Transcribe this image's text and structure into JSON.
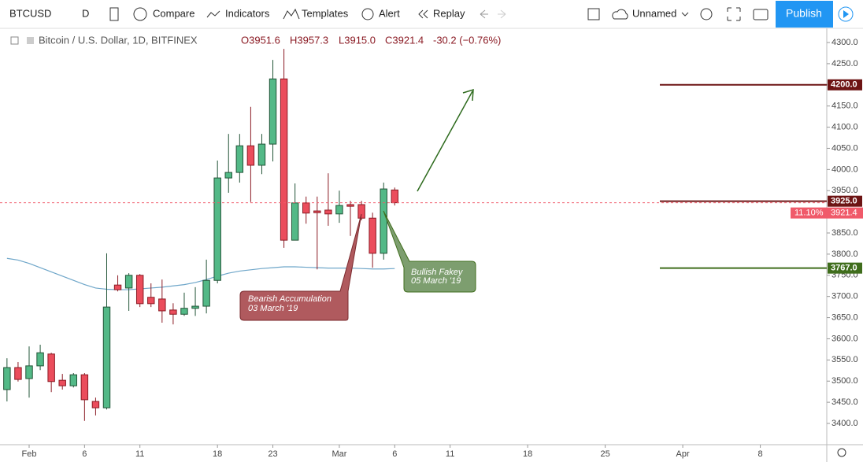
{
  "toolbar": {
    "symbol": "BTCUSD",
    "interval": "D",
    "compare": "Compare",
    "indicators": "Indicators",
    "templates": "Templates",
    "alert": "Alert",
    "replay": "Replay",
    "layout": "Unnamed",
    "publish": "Publish"
  },
  "chart_data": {
    "type": "candlestick",
    "title": "Bitcoin / U.S. Dollar, 1D, BITFINEX",
    "ohlc_text": [
      "O3951.6",
      "H3957.3",
      "L3915.0",
      "C3921.4",
      "-30.2 (−0.76%)"
    ],
    "x": [
      -2,
      -1,
      0,
      1,
      2,
      3,
      4,
      5,
      6,
      7,
      8,
      9,
      10,
      11,
      12,
      13,
      14,
      15,
      16,
      17,
      18,
      19,
      20,
      21,
      22,
      23,
      24,
      25,
      26,
      27,
      28,
      29,
      30,
      31,
      32,
      33
    ],
    "open": [
      3480,
      3532,
      3506,
      3536,
      3564,
      3502,
      3489,
      3515,
      3452,
      3437,
      3727,
      3720,
      3750,
      3698,
      3694,
      3668,
      3658,
      3672,
      3677,
      3738,
      3980,
      3993,
      4056,
      4010,
      4060,
      4214,
      3833,
      3921,
      3902,
      3904,
      3895,
      3917,
      3917,
      3885,
      3802,
      3951.6
    ],
    "high": [
      3554,
      3545,
      3582,
      3586,
      3567,
      3517,
      3519,
      3519,
      3461,
      3802,
      3750,
      3755,
      3753,
      3731,
      3740,
      3684,
      3709,
      3722,
      3787,
      4021,
      4084,
      4084,
      4148,
      4084,
      4259,
      4285,
      3967,
      3936,
      3936,
      3991,
      3950,
      3926,
      3926,
      3898,
      3969,
      3957.3
    ],
    "low": [
      3452,
      3499,
      3461,
      3526,
      3474,
      3480,
      3485,
      3406,
      3419,
      3433,
      3712,
      3666,
      3675,
      3675,
      3638,
      3634,
      3654,
      3654,
      3660,
      3731,
      3945,
      3969,
      3923,
      3989,
      4019,
      3815,
      3833,
      3872,
      3764,
      3867,
      3874,
      3843,
      3880,
      3768,
      3787,
      3915.0
    ],
    "close": [
      3532,
      3504,
      3536,
      3567,
      3499,
      3489,
      3515,
      3456,
      3437,
      3675,
      3716,
      3750,
      3683,
      3683,
      3666,
      3658,
      3672,
      3677,
      3738,
      3980,
      3993,
      4056,
      4010,
      4060,
      4214,
      3833,
      3921,
      3897,
      3898,
      3895,
      3915,
      3913,
      3885,
      3802,
      3954,
      3921.4
    ],
    "ma_values": [
      3790,
      3786,
      3778,
      3768,
      3758,
      3748,
      3738,
      3728,
      3720,
      3717,
      3716,
      3716,
      3718,
      3720,
      3722,
      3725,
      3728,
      3733,
      3740,
      3748,
      3755,
      3760,
      3763,
      3766,
      3768,
      3770,
      3770,
      3769,
      3768,
      3767,
      3767,
      3767,
      3766,
      3765,
      3765,
      3766
    ],
    "up_color": "#53b987",
    "down_color": "#eb4d5c",
    "ma_color": "#6ea6c9",
    "xlim": [
      -2.63,
      72
    ],
    "xticks": [
      {
        "value": 0,
        "label": "Feb"
      },
      {
        "value": 5,
        "label": "6"
      },
      {
        "value": 10,
        "label": "11"
      },
      {
        "value": 17,
        "label": "18"
      },
      {
        "value": 22,
        "label": "23"
      },
      {
        "value": 28,
        "label": "Mar"
      },
      {
        "value": 33,
        "label": "6"
      },
      {
        "value": 38,
        "label": "11"
      },
      {
        "value": 45,
        "label": "18"
      },
      {
        "value": 52,
        "label": "25"
      },
      {
        "value": 59,
        "label": "Apr"
      },
      {
        "value": 66,
        "label": "8"
      }
    ],
    "ylim": [
      3349.8,
      4333.5
    ],
    "yticks": [
      {
        "value": 3400,
        "label": "3400.0"
      },
      {
        "value": 3450,
        "label": "3450.0"
      },
      {
        "value": 3500,
        "label": "3500.0"
      },
      {
        "value": 3550,
        "label": "3550.0"
      },
      {
        "value": 3600,
        "label": "3600.0"
      },
      {
        "value": 3650,
        "label": "3650.0"
      },
      {
        "value": 3700,
        "label": "3700.0"
      },
      {
        "value": 3750,
        "label": "3750.0"
      },
      {
        "value": 3800,
        "label": "3800.0"
      },
      {
        "value": 3850,
        "label": "3850.0"
      },
      {
        "value": 3900,
        "label": "3900.0"
      },
      {
        "value": 3950,
        "label": "3950.0"
      },
      {
        "value": 4000,
        "label": "4000.0"
      },
      {
        "value": 4050,
        "label": "4050.0"
      },
      {
        "value": 4100,
        "label": "4100.0"
      },
      {
        "value": 4150,
        "label": "4150.0"
      },
      {
        "value": 4200,
        "label": "4200.0"
      },
      {
        "value": 4250,
        "label": "4250.0"
      },
      {
        "value": 4300,
        "label": "4300.0"
      }
    ],
    "grid": false,
    "levels": [
      {
        "value": 4200,
        "label": "4200.0",
        "color": "#6d1414"
      },
      {
        "value": 3925,
        "label": "3925.0",
        "color": "#6d1414"
      },
      {
        "value": 3767,
        "label": "3767.0",
        "color": "#3f6d1c"
      }
    ],
    "last_price": {
      "value": 3921.4,
      "label": "3921.4",
      "change": "11.10%",
      "color": "#f05a6a"
    },
    "annotations": [
      {
        "title": "Bearish Accumulation",
        "date": "03 March '19"
      },
      {
        "title": "Bullish Fakey",
        "date": "05 March '19"
      }
    ]
  }
}
